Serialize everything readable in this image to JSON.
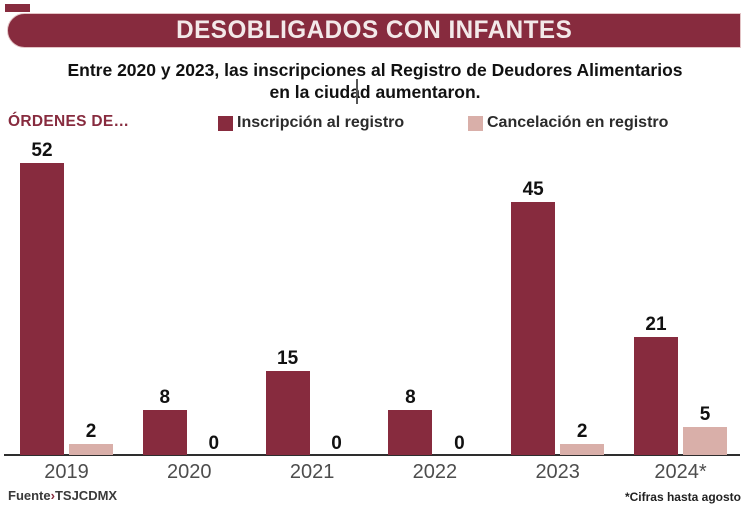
{
  "header": {
    "title": "DESOBLIGADOS CON INFANTES"
  },
  "subtitle": {
    "line1": "Entre 2020 y 2023, las inscripciones al Registro de Deudores Alimentarios",
    "line2": "en la ciudad aumentaron."
  },
  "footer": {
    "source_label": "Fuente",
    "source_separator": "›",
    "source_value": "TSJCDMX",
    "note": "*Cifras hasta agosto"
  },
  "colors": {
    "maroon": "#872B3E",
    "pink": "#D9AFA9",
    "axis": "#2e2e2e"
  },
  "chart_data": {
    "type": "bar",
    "title": "ÓRDENES DE…",
    "categories": [
      "2019",
      "2020",
      "2021",
      "2022",
      "2023",
      "2024*"
    ],
    "series": [
      {
        "name": "Inscripción al registro",
        "color": "#872B3E",
        "values": [
          52,
          8,
          15,
          8,
          45,
          21
        ]
      },
      {
        "name": "Cancelación en registro",
        "color": "#D9AFA9",
        "values": [
          2,
          0,
          0,
          0,
          2,
          5
        ]
      }
    ],
    "ylim": [
      0,
      55
    ],
    "xlabel": "",
    "ylabel": "",
    "grid": false,
    "legend_position": "top",
    "value_labels": true,
    "note": "*Cifras hasta agosto",
    "source": "Fuente›TSJCDMX"
  }
}
